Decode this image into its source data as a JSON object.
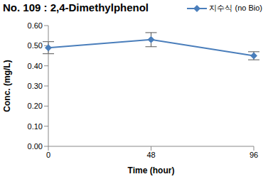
{
  "chart_data": {
    "type": "line",
    "title": "No. 109 : 2,4-Dimethylphenol",
    "x_label": "Time (hour)",
    "y_label": "Conc. (mg/L)",
    "categories": [
      "0",
      "48",
      "96"
    ],
    "series": [
      {
        "name": "지수식 (no Bio)",
        "color": "#4a7ebb",
        "values": [
          0.49,
          0.53,
          0.45
        ],
        "errors": [
          0.03,
          0.035,
          0.02
        ],
        "marker": "diamond",
        "line_style": "solid"
      }
    ],
    "ylim": [
      0,
      0.6
    ],
    "yticks": [
      {
        "value": 0,
        "label": "0.00"
      },
      {
        "value": 0.1,
        "label": "0.10"
      },
      {
        "value": 0.2,
        "label": "0.20"
      },
      {
        "value": 0.3,
        "label": "0.30"
      },
      {
        "value": 0.4,
        "label": "0.40"
      },
      {
        "value": 0.5,
        "label": "0.50"
      },
      {
        "value": 0.6,
        "label": "0.60"
      }
    ],
    "grid": false,
    "legend": "upper right"
  }
}
